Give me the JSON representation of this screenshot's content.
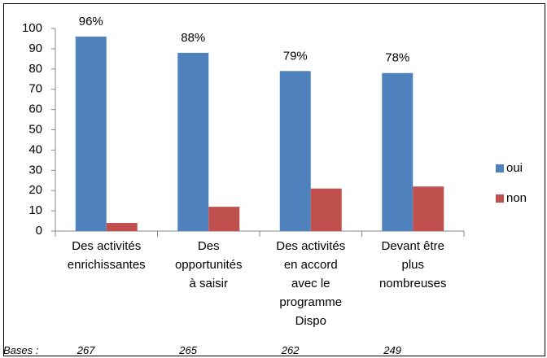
{
  "chart_data": {
    "type": "bar",
    "categories": [
      "Des activités\nenrichissantes",
      "Des\nopportunités\nà saisir",
      "Des activités\nen accord\navec le\nprogramme\nDispo",
      "Devant être\nplus\nnombreuses"
    ],
    "series": [
      {
        "name": "oui",
        "color": "#4f81bd",
        "values": [
          96,
          88,
          79,
          78
        ],
        "value_labels": [
          "96%",
          "88%",
          "79%",
          "78%"
        ]
      },
      {
        "name": "non",
        "color": "#c0504d",
        "values": [
          4,
          12,
          21,
          22
        ]
      }
    ],
    "ylim": [
      0,
      100
    ],
    "yticks": [
      0,
      10,
      20,
      30,
      40,
      50,
      60,
      70,
      80,
      90,
      100
    ],
    "grid": false,
    "legend": "right",
    "bases": {
      "label": "Bases :",
      "values": [
        "267",
        "265",
        "262",
        "249"
      ]
    }
  }
}
